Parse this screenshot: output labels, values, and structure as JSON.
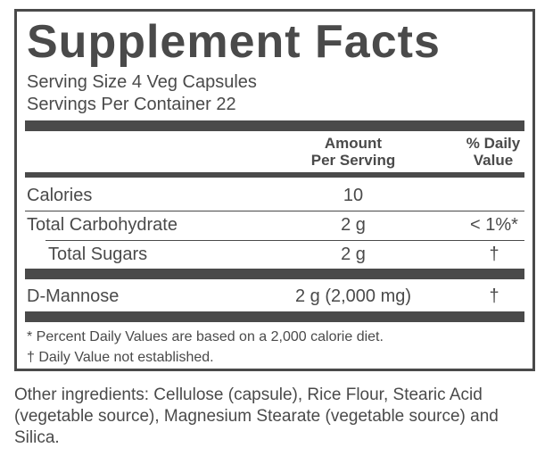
{
  "label": {
    "title": "Supplement Facts",
    "serving_size": "Serving Size 4 Veg Capsules",
    "servings_per_container": "Servings Per Container 22",
    "header": {
      "amount_line1": "Amount",
      "amount_line2": "Per Serving",
      "dv_line1": "% Daily",
      "dv_line2": "Value"
    },
    "rows": [
      {
        "name": "Calories",
        "amount": "10",
        "dv": ""
      },
      {
        "name": "Total Carbohydrate",
        "amount": "2 g",
        "dv": "< 1%*"
      },
      {
        "name": "Total Sugars",
        "amount": "2 g",
        "dv": "†"
      },
      {
        "name": "D-Mannose",
        "amount": "2 g (2,000 mg)",
        "dv": "†"
      }
    ],
    "footnotes": [
      "* Percent Daily Values are based on a 2,000 calorie diet.",
      "† Daily Value not established."
    ]
  },
  "other_ingredients": "Other ingredients: Cellulose (capsule), Rice Flour, Stearic Acid (vegetable source), Magnesium Stearate (vegetable source) and Silica.",
  "colors": {
    "ink": "#4a4a4a",
    "background": "#ffffff"
  }
}
